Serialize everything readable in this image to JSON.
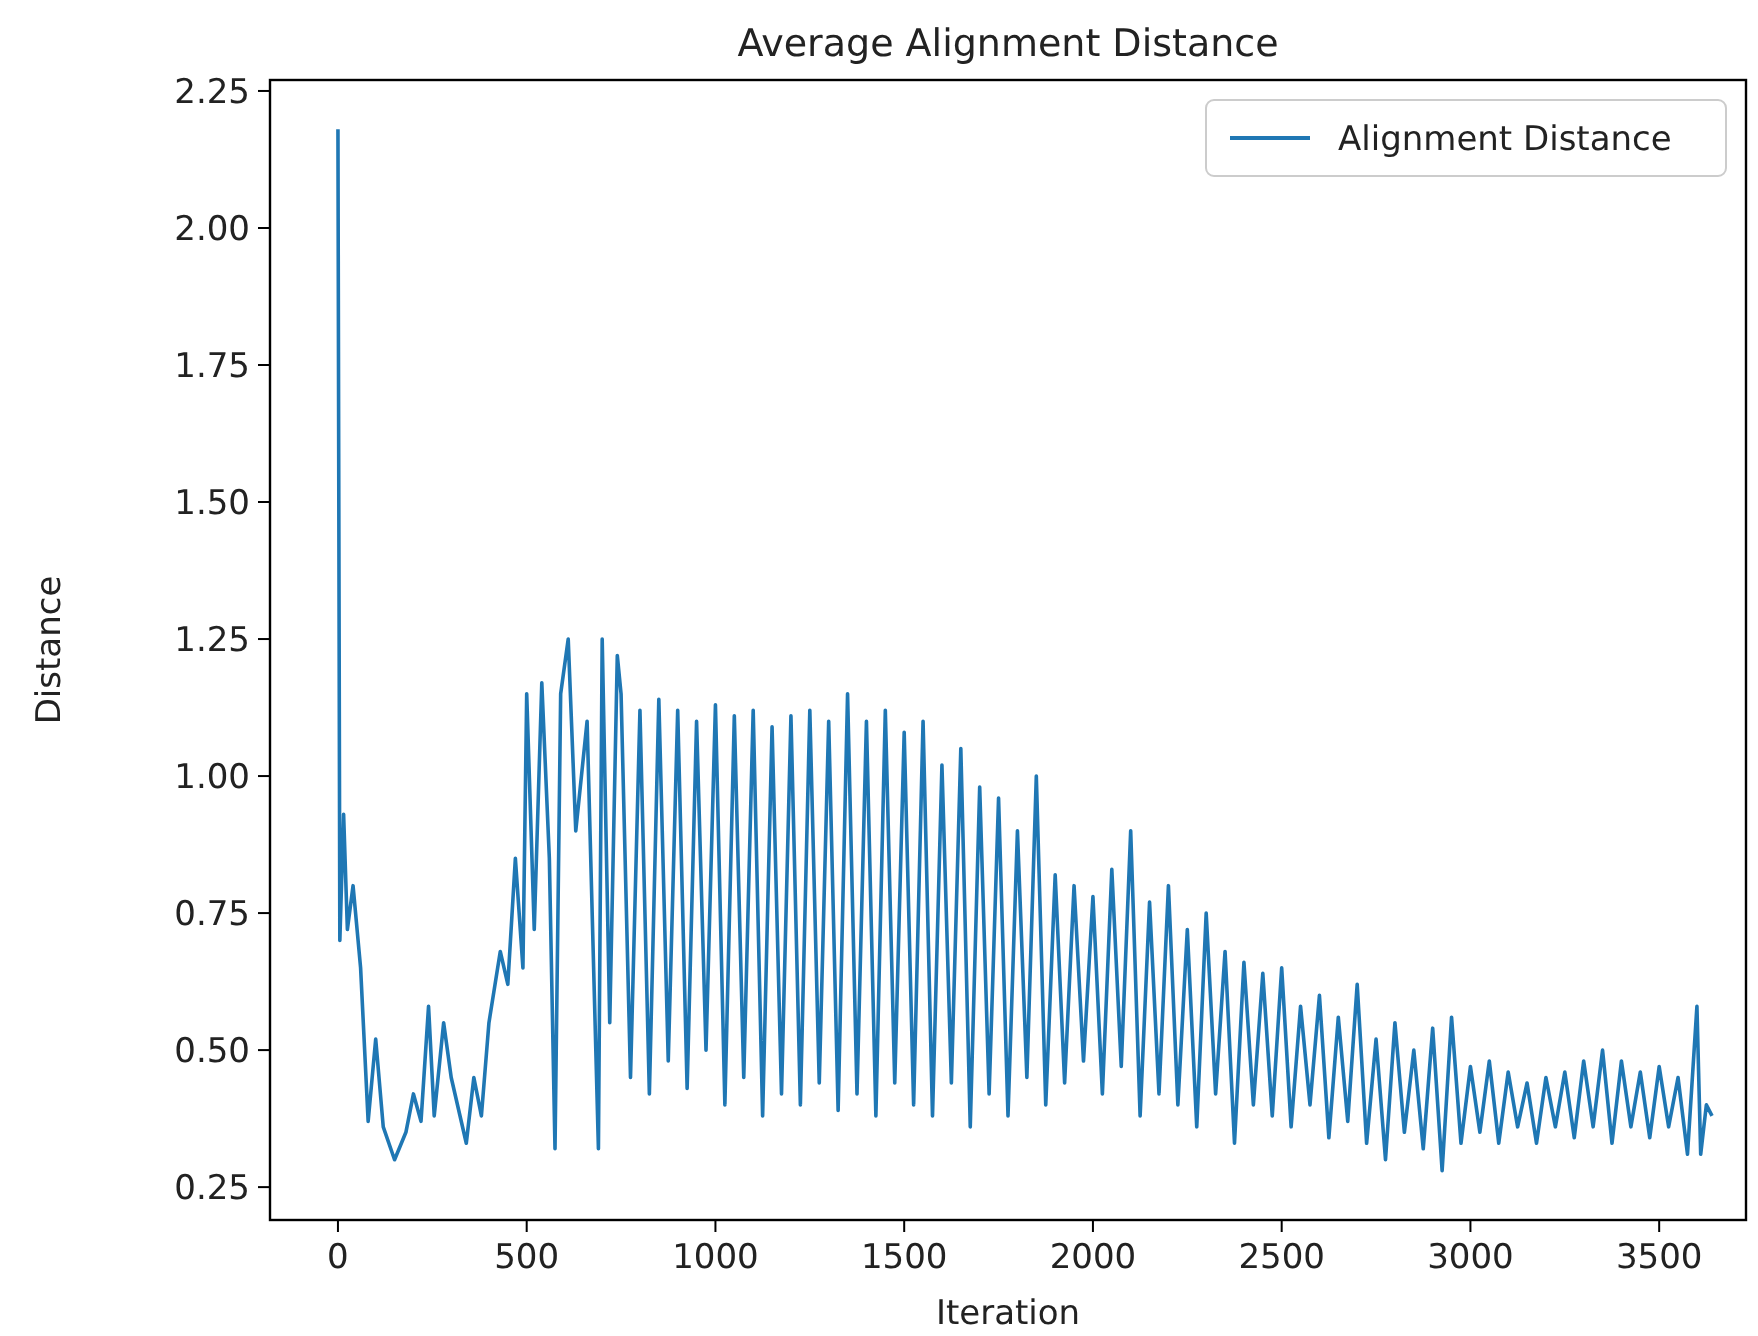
{
  "chart_data": {
    "type": "line",
    "title": "Average Alignment Distance",
    "xlabel": "Iteration",
    "ylabel": "Distance",
    "xlim": [
      -180,
      3730
    ],
    "ylim": [
      0.19,
      2.27
    ],
    "xticks": [
      0,
      500,
      1000,
      1500,
      2000,
      2500,
      3000,
      3500
    ],
    "yticks": [
      {
        "value": 0.25,
        "label": "0.25"
      },
      {
        "value": 0.5,
        "label": "0.50"
      },
      {
        "value": 0.75,
        "label": "0.75"
      },
      {
        "value": 1,
        "label": "1.00"
      },
      {
        "value": 1.25,
        "label": "1.25"
      },
      {
        "value": 1.5,
        "label": "1.50"
      },
      {
        "value": 1.75,
        "label": "1.75"
      },
      {
        "value": 2,
        "label": "2.00"
      },
      {
        "value": 2.25,
        "label": "2.25"
      }
    ],
    "grid": false,
    "legend": "top right",
    "series": [
      {
        "name": "Alignment Distance",
        "color": "#1f77b4",
        "x": [
          0,
          5,
          15,
          25,
          40,
          60,
          80,
          100,
          120,
          150,
          180,
          200,
          220,
          240,
          255,
          280,
          300,
          340,
          360,
          380,
          400,
          430,
          450,
          470,
          490,
          500,
          520,
          540,
          560,
          575,
          590,
          610,
          630,
          660,
          690,
          700,
          720,
          740,
          750,
          775,
          800,
          825,
          850,
          875,
          900,
          925,
          950,
          975,
          1000,
          1025,
          1050,
          1075,
          1100,
          1125,
          1150,
          1175,
          1200,
          1225,
          1250,
          1275,
          1300,
          1325,
          1350,
          1375,
          1400,
          1425,
          1450,
          1475,
          1500,
          1525,
          1550,
          1575,
          1600,
          1625,
          1650,
          1675,
          1700,
          1725,
          1750,
          1775,
          1800,
          1825,
          1850,
          1875,
          1900,
          1925,
          1950,
          1975,
          2000,
          2025,
          2050,
          2075,
          2100,
          2125,
          2150,
          2175,
          2200,
          2225,
          2250,
          2275,
          2300,
          2325,
          2350,
          2375,
          2400,
          2425,
          2450,
          2475,
          2500,
          2525,
          2550,
          2575,
          2600,
          2625,
          2650,
          2675,
          2700,
          2725,
          2750,
          2775,
          2800,
          2825,
          2850,
          2875,
          2900,
          2925,
          2950,
          2975,
          3000,
          3025,
          3050,
          3075,
          3100,
          3125,
          3150,
          3175,
          3200,
          3225,
          3250,
          3275,
          3300,
          3325,
          3350,
          3375,
          3400,
          3425,
          3450,
          3475,
          3500,
          3525,
          3550,
          3575,
          3600,
          3610,
          3625,
          3640
        ],
        "values": [
          2.18,
          0.7,
          0.93,
          0.72,
          0.8,
          0.65,
          0.37,
          0.52,
          0.36,
          0.3,
          0.35,
          0.42,
          0.37,
          0.58,
          0.38,
          0.55,
          0.45,
          0.33,
          0.45,
          0.38,
          0.55,
          0.68,
          0.62,
          0.85,
          0.65,
          1.15,
          0.72,
          1.17,
          0.85,
          0.32,
          1.15,
          1.25,
          0.9,
          1.1,
          0.32,
          1.25,
          0.55,
          1.22,
          1.15,
          0.45,
          1.12,
          0.42,
          1.14,
          0.48,
          1.12,
          0.43,
          1.1,
          0.5,
          1.13,
          0.4,
          1.11,
          0.45,
          1.12,
          0.38,
          1.09,
          0.42,
          1.11,
          0.4,
          1.12,
          0.44,
          1.1,
          0.39,
          1.15,
          0.42,
          1.1,
          0.38,
          1.12,
          0.44,
          1.08,
          0.4,
          1.1,
          0.38,
          1.02,
          0.44,
          1.05,
          0.36,
          0.98,
          0.42,
          0.96,
          0.38,
          0.9,
          0.45,
          1.0,
          0.4,
          0.82,
          0.44,
          0.8,
          0.48,
          0.78,
          0.42,
          0.83,
          0.47,
          0.9,
          0.38,
          0.77,
          0.42,
          0.8,
          0.4,
          0.72,
          0.36,
          0.75,
          0.42,
          0.68,
          0.33,
          0.66,
          0.4,
          0.64,
          0.38,
          0.65,
          0.36,
          0.58,
          0.4,
          0.6,
          0.34,
          0.56,
          0.37,
          0.62,
          0.33,
          0.52,
          0.3,
          0.55,
          0.35,
          0.5,
          0.32,
          0.54,
          0.28,
          0.56,
          0.33,
          0.47,
          0.35,
          0.48,
          0.33,
          0.46,
          0.36,
          0.44,
          0.33,
          0.45,
          0.36,
          0.46,
          0.34,
          0.48,
          0.36,
          0.5,
          0.33,
          0.48,
          0.36,
          0.46,
          0.34,
          0.47,
          0.36,
          0.45,
          0.31,
          0.58,
          0.31,
          0.4,
          0.38
        ]
      }
    ]
  }
}
